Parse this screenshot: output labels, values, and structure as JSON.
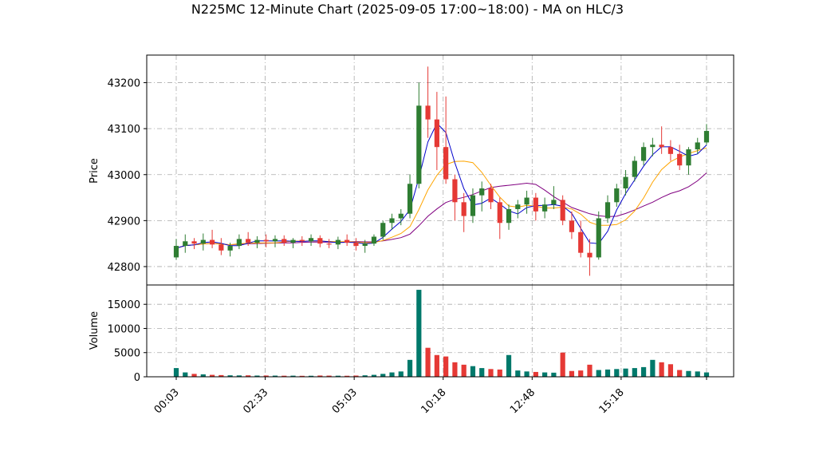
{
  "chart_data": {
    "type": "candlestick",
    "title": "N225MC 12-Minute Chart (2025-09-05 17:00~18:00) - MA on HLC/3",
    "price_panel": {
      "ylabel": "Price",
      "ylim": [
        42760,
        43260
      ],
      "yticks": [
        42800,
        42900,
        43000,
        43100,
        43200
      ],
      "grid": true
    },
    "volume_panel": {
      "ylabel": "Volume",
      "ylim": [
        0,
        19000
      ],
      "yticks": [
        0,
        5000,
        10000,
        15000
      ],
      "grid": true
    },
    "xlabels": [
      "00:03",
      "02:33",
      "05:03",
      "10:18",
      "12:48",
      "15:18"
    ],
    "x_index_ticks": [
      0,
      12.5,
      25,
      37.5,
      50,
      62.5
    ],
    "colors": {
      "up": "#2e7d32",
      "down": "#e53935",
      "ma_fast": "#0000cc",
      "ma_mid": "#ffa500",
      "ma_slow": "#800080",
      "vol_up": "#00796b",
      "vol_down": "#e53935"
    },
    "candles_ohlc": [
      [
        42820,
        42860,
        42815,
        42845
      ],
      [
        42845,
        42870,
        42830,
        42855
      ],
      [
        42855,
        42862,
        42838,
        42850
      ],
      [
        42850,
        42872,
        42835,
        42858
      ],
      [
        42858,
        42880,
        42840,
        42848
      ],
      [
        42848,
        42862,
        42825,
        42835
      ],
      [
        42835,
        42852,
        42822,
        42845
      ],
      [
        42845,
        42870,
        42838,
        42860
      ],
      [
        42860,
        42875,
        42845,
        42852
      ],
      [
        42852,
        42866,
        42840,
        42858
      ],
      [
        42858,
        42870,
        42842,
        42855
      ],
      [
        42855,
        42868,
        42842,
        42860
      ],
      [
        42860,
        42868,
        42845,
        42852
      ],
      [
        42852,
        42862,
        42840,
        42858
      ],
      [
        42858,
        42866,
        42845,
        42855
      ],
      [
        42855,
        42870,
        42845,
        42862
      ],
      [
        42862,
        42868,
        42842,
        42850
      ],
      [
        42850,
        42860,
        42840,
        42848
      ],
      [
        42848,
        42865,
        42838,
        42858
      ],
      [
        42858,
        42870,
        42845,
        42852
      ],
      [
        42852,
        42862,
        42835,
        42845
      ],
      [
        42845,
        42858,
        42830,
        42850
      ],
      [
        42850,
        42870,
        42845,
        42865
      ],
      [
        42865,
        42900,
        42858,
        42895
      ],
      [
        42895,
        42915,
        42880,
        42905
      ],
      [
        42905,
        42925,
        42890,
        42915
      ],
      [
        42915,
        43000,
        42905,
        42980
      ],
      [
        42980,
        43200,
        42970,
        43150
      ],
      [
        43150,
        43235,
        43080,
        43120
      ],
      [
        43120,
        43180,
        43010,
        43060
      ],
      [
        43060,
        43170,
        42980,
        42990
      ],
      [
        42990,
        43000,
        42900,
        42940
      ],
      [
        42940,
        42960,
        42875,
        42910
      ],
      [
        42910,
        42970,
        42895,
        42955
      ],
      [
        42955,
        42985,
        42920,
        42970
      ],
      [
        42970,
        42980,
        42925,
        42940
      ],
      [
        42940,
        42950,
        42860,
        42895
      ],
      [
        42895,
        42935,
        42880,
        42925
      ],
      [
        42925,
        42945,
        42905,
        42935
      ],
      [
        42935,
        42965,
        42915,
        42950
      ],
      [
        42950,
        42960,
        42900,
        42920
      ],
      [
        42920,
        42950,
        42905,
        42935
      ],
      [
        42935,
        42975,
        42925,
        42945
      ],
      [
        42945,
        42955,
        42890,
        42900
      ],
      [
        42900,
        42920,
        42860,
        42875
      ],
      [
        42875,
        42900,
        42820,
        42830
      ],
      [
        42830,
        42860,
        42780,
        42820
      ],
      [
        42820,
        42920,
        42815,
        42905
      ],
      [
        42905,
        42955,
        42895,
        42940
      ],
      [
        42940,
        42980,
        42930,
        42970
      ],
      [
        42970,
        43010,
        42955,
        42995
      ],
      [
        42995,
        43040,
        42985,
        43030
      ],
      [
        43030,
        43070,
        43020,
        43060
      ],
      [
        43060,
        43080,
        43040,
        43065
      ],
      [
        43065,
        43105,
        43045,
        43060
      ],
      [
        43060,
        43075,
        43030,
        43045
      ],
      [
        43045,
        43065,
        43010,
        43020
      ],
      [
        43020,
        43060,
        43000,
        43055
      ],
      [
        43055,
        43080,
        43045,
        43070
      ],
      [
        43070,
        43110,
        43065,
        43095
      ]
    ],
    "volumes": [
      1800,
      900,
      600,
      500,
      400,
      350,
      300,
      280,
      300,
      250,
      260,
      240,
      220,
      230,
      200,
      210,
      260,
      240,
      220,
      210,
      250,
      300,
      400,
      600,
      900,
      1100,
      3500,
      18000,
      6000,
      4500,
      4200,
      3000,
      2500,
      2200,
      1800,
      1600,
      1500,
      4500,
      1300,
      1100,
      1000,
      900,
      850,
      5000,
      1200,
      1300,
      2500,
      1400,
      1500,
      1600,
      1700,
      1800,
      2000,
      3500,
      3000,
      2600,
      1400,
      1200,
      1100,
      900
    ]
  }
}
